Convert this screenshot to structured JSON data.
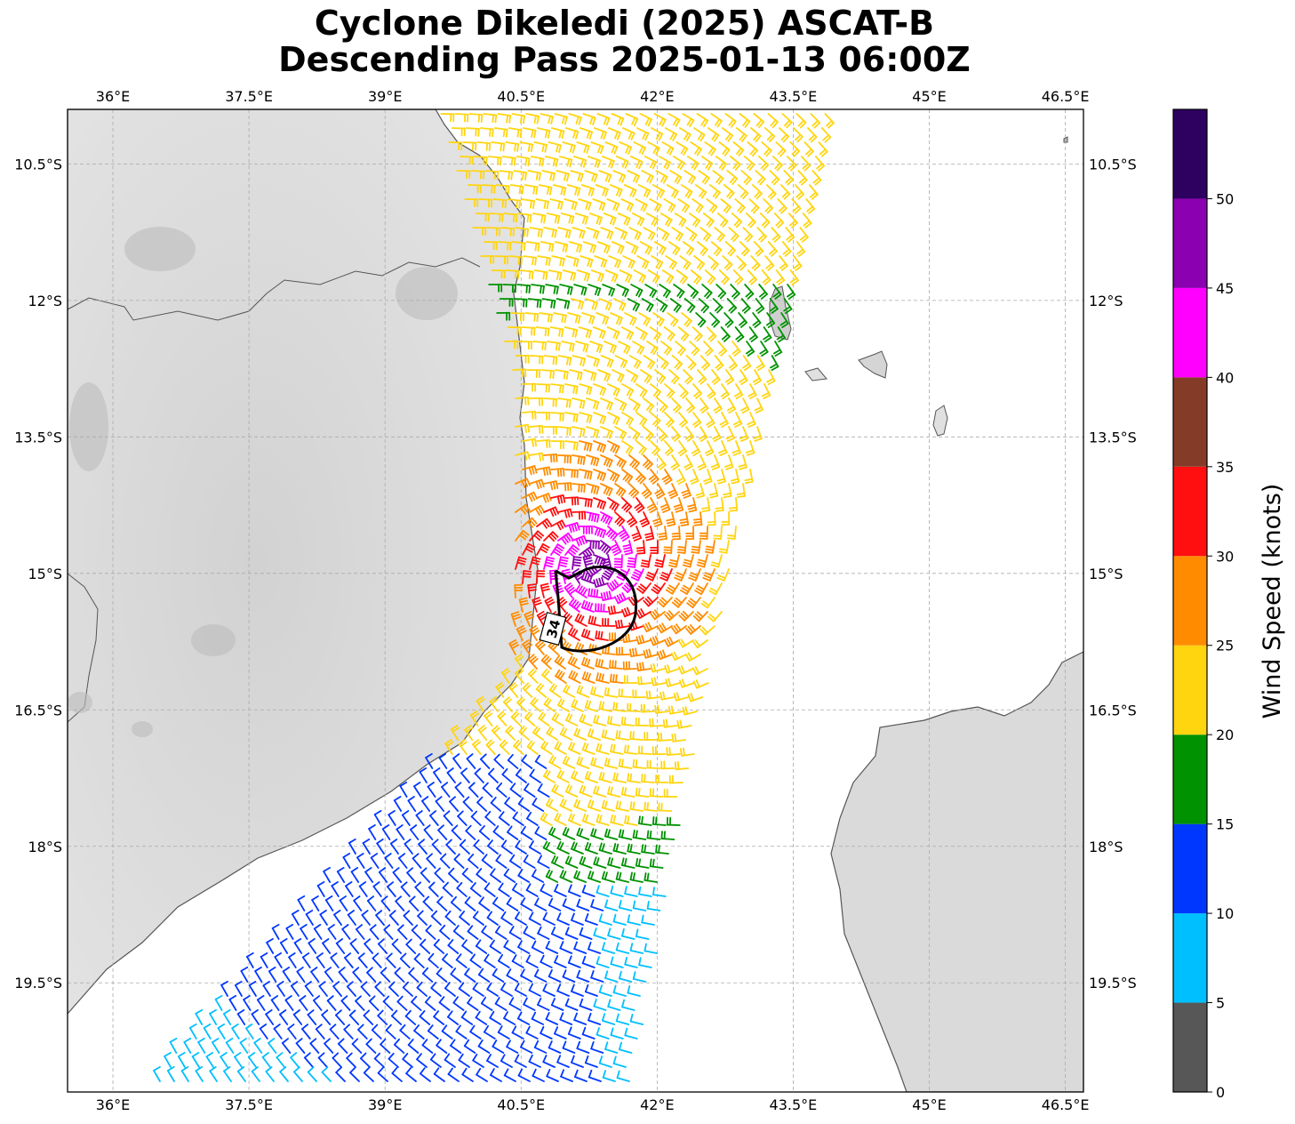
{
  "title": {
    "line1": "Cyclone Dikeledi (2025) ASCAT-B",
    "line2": "Descending Pass 2025-01-13 06:00Z"
  },
  "map": {
    "lon_range": [
      35.5,
      46.7
    ],
    "lat_range": [
      -20.7,
      -9.9
    ],
    "lon_ticks": [
      "36°E",
      "37.5°E",
      "39°E",
      "40.5°E",
      "42°E",
      "43.5°E",
      "45°E",
      "46.5°E"
    ],
    "lat_ticks": [
      "10.5°S",
      "12°S",
      "13.5°S",
      "15°S",
      "16.5°S",
      "18°S",
      "19.5°S"
    ],
    "gridlines": true,
    "background": "grayscale terrain",
    "coastline_color": "#555555",
    "wind_radius_label": "34",
    "cyclone_center": {
      "lon": 41.3,
      "lat": -14.9
    }
  },
  "colorbar": {
    "label": "Wind Speed (knots)",
    "ticks": [
      "0",
      "5",
      "10",
      "15",
      "20",
      "25",
      "30",
      "35",
      "40",
      "45",
      "50"
    ],
    "bins": [
      {
        "min": 0,
        "max": 5,
        "color": "#575757"
      },
      {
        "min": 5,
        "max": 10,
        "color": "#00bfff"
      },
      {
        "min": 10,
        "max": 15,
        "color": "#0037ff"
      },
      {
        "min": 15,
        "max": 20,
        "color": "#009200"
      },
      {
        "min": 20,
        "max": 25,
        "color": "#ffd510"
      },
      {
        "min": 25,
        "max": 30,
        "color": "#ff8c00"
      },
      {
        "min": 30,
        "max": 35,
        "color": "#ff0f0f"
      },
      {
        "min": 35,
        "max": 40,
        "color": "#843c29"
      },
      {
        "min": 40,
        "max": 45,
        "color": "#ff00ff"
      },
      {
        "min": 45,
        "max": 50,
        "color": "#8b00b0"
      },
      {
        "min": 50,
        "max": 55,
        "color": "#2e0060"
      }
    ]
  }
}
